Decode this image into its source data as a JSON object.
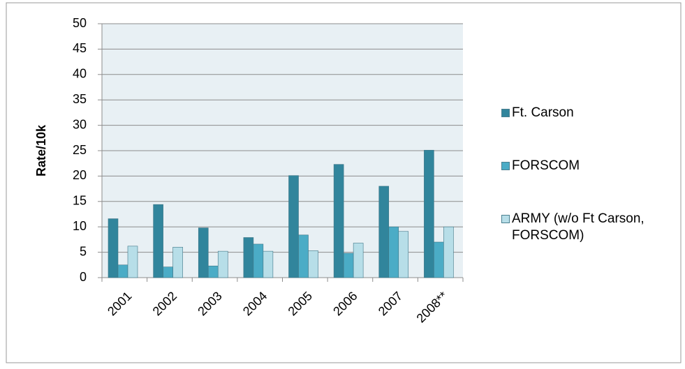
{
  "chart_data": {
    "type": "bar",
    "y_label": "Rate/10k",
    "categories": [
      "2001",
      "2002",
      "2003",
      "2004",
      "2005",
      "2006",
      "2007",
      "2008**"
    ],
    "series": [
      {
        "name": "Ft. Carson",
        "color": "#31859c",
        "values": [
          11.6,
          14.4,
          9.8,
          7.9,
          20.1,
          22.3,
          18.0,
          25.1
        ]
      },
      {
        "name": "FORSCOM",
        "color": "#4bacc6",
        "values": [
          2.5,
          2.1,
          2.3,
          6.6,
          8.4,
          4.8,
          10.0,
          7.0
        ]
      },
      {
        "name": "ARMY (w/o Ft Carson, FORSCOM)",
        "color": "#b7dee8",
        "values": [
          6.2,
          6.0,
          5.2,
          5.2,
          5.3,
          6.8,
          9.1,
          10.0
        ]
      }
    ],
    "ylim": [
      0,
      50
    ],
    "yticks": [
      0,
      5,
      10,
      15,
      20,
      25,
      30,
      35,
      40,
      45,
      50
    ],
    "grid": true,
    "legend": "right"
  }
}
